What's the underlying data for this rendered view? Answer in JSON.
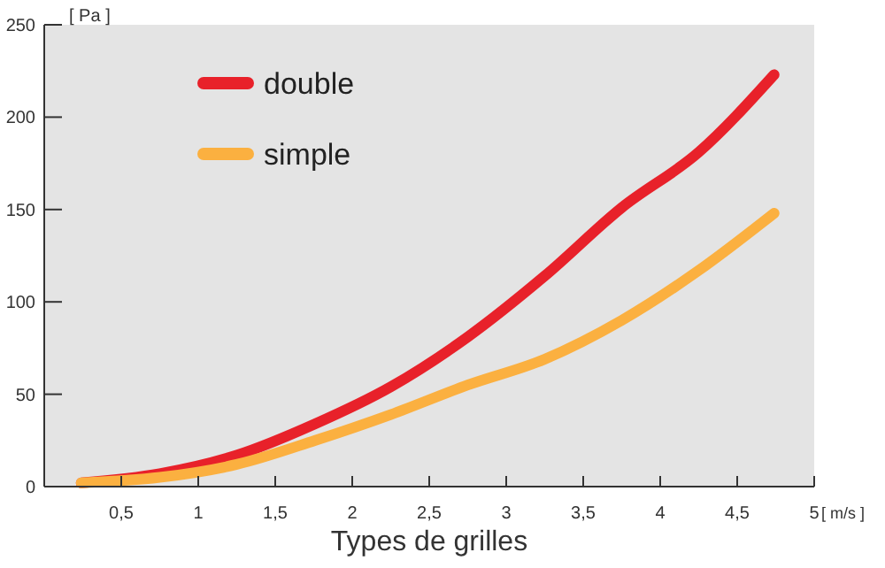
{
  "chart_data": {
    "type": "line",
    "xlabel": "Types de grilles",
    "ylabel": "[ Pa ]",
    "annotations": [
      "[ m/s ]"
    ],
    "xlim": [
      0,
      5
    ],
    "ylim": [
      0,
      250
    ],
    "xticks": [
      {
        "value": 0.5,
        "label": "0,5"
      },
      1,
      {
        "value": 1.5,
        "label": "1,5"
      },
      2,
      {
        "value": 2.5,
        "label": "2,5"
      },
      3,
      {
        "value": 3.5,
        "label": "3,5"
      },
      4,
      {
        "value": 4.5,
        "label": "4,5"
      },
      5
    ],
    "yticks": [
      0,
      50,
      100,
      150,
      200,
      250
    ],
    "grid": false,
    "legend": "top left",
    "marker": "none",
    "line_style": "solid",
    "series": [
      {
        "name": "double",
        "color": "#e8212a",
        "x": [
          0.24,
          0.75,
          1.25,
          1.76,
          2.25,
          2.75,
          3.25,
          3.75,
          4.25,
          4.74
        ],
        "values": [
          2,
          7,
          17,
          34,
          54,
          81,
          114,
          151,
          181,
          223
        ]
      },
      {
        "name": "simple",
        "color": "#fbb040",
        "x": [
          0.24,
          0.75,
          1.25,
          1.76,
          2.25,
          2.75,
          3.25,
          3.75,
          4.25,
          4.74
        ],
        "values": [
          2,
          5,
          12,
          25,
          39,
          55,
          69,
          90,
          117,
          148
        ]
      }
    ]
  }
}
